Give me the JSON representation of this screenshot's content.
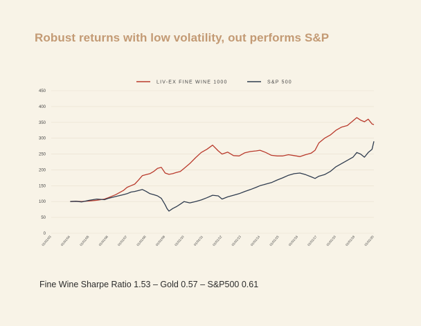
{
  "title": "Robust returns with low volatility, out performs S&P",
  "footer": "Fine Wine Sharpe Ratio 1.53  –  Gold 0.57  –  S&P500 0.61",
  "chart_data": {
    "type": "line",
    "xlabel": "",
    "ylabel": "",
    "ylim": [
      0,
      450
    ],
    "yticks": [
      0,
      50,
      100,
      150,
      200,
      250,
      300,
      350,
      400,
      450
    ],
    "xlim": [
      2003,
      2020
    ],
    "x_tick_labels": [
      "01/01/03",
      "01/01/04",
      "01/01/05",
      "01/01/06",
      "01/01/07",
      "01/01/08",
      "01/01/09",
      "01/01/10",
      "01/01/11",
      "01/01/12",
      "01/01/13",
      "01/01/14",
      "01/01/15",
      "01/01/16",
      "01/01/17",
      "01/01/18",
      "01/01/19",
      "01/01/20"
    ],
    "grid": "horizontal",
    "legend_position": "top-center",
    "series": [
      {
        "name": "LIV-EX FINE WINE 1000",
        "color": "#b93a2c",
        "x": [
          2004.0,
          2004.3,
          2004.6,
          2005.0,
          2005.4,
          2005.8,
          2006.0,
          2006.4,
          2006.8,
          2007.0,
          2007.2,
          2007.4,
          2007.6,
          2007.8,
          2008.0,
          2008.2,
          2008.4,
          2008.6,
          2008.8,
          2009.0,
          2009.2,
          2009.4,
          2009.6,
          2009.8,
          2010.0,
          2010.3,
          2010.6,
          2010.9,
          2011.2,
          2011.5,
          2011.8,
          2012.0,
          2012.3,
          2012.6,
          2012.9,
          2013.2,
          2013.5,
          2013.8,
          2014.0,
          2014.3,
          2014.6,
          2014.9,
          2015.2,
          2015.5,
          2015.8,
          2016.1,
          2016.4,
          2016.7,
          2016.9,
          2017.1,
          2017.4,
          2017.7,
          2018.0,
          2018.3,
          2018.6,
          2018.9,
          2019.1,
          2019.3,
          2019.5,
          2019.7,
          2019.9,
          2020.0
        ],
        "values": [
          100,
          101,
          100,
          102,
          104,
          108,
          112,
          122,
          135,
          145,
          150,
          155,
          168,
          182,
          185,
          188,
          195,
          205,
          208,
          190,
          186,
          188,
          192,
          195,
          205,
          220,
          238,
          255,
          265,
          278,
          260,
          250,
          256,
          245,
          244,
          254,
          258,
          260,
          262,
          255,
          246,
          244,
          244,
          248,
          245,
          242,
          248,
          253,
          262,
          285,
          300,
          310,
          325,
          335,
          340,
          355,
          365,
          357,
          352,
          360,
          345,
          343
        ]
      },
      {
        "name": "S&P 500",
        "color": "#2f3c4f",
        "x": [
          2004.0,
          2004.3,
          2004.6,
          2005.0,
          2005.4,
          2005.8,
          2006.0,
          2006.4,
          2006.8,
          2007.0,
          2007.2,
          2007.4,
          2007.6,
          2007.8,
          2008.0,
          2008.2,
          2008.4,
          2008.6,
          2008.8,
          2009.0,
          2009.1,
          2009.2,
          2009.4,
          2009.6,
          2009.8,
          2010.0,
          2010.3,
          2010.6,
          2010.9,
          2011.2,
          2011.5,
          2011.8,
          2012.0,
          2012.3,
          2012.6,
          2012.9,
          2013.2,
          2013.5,
          2013.8,
          2014.0,
          2014.3,
          2014.6,
          2014.9,
          2015.2,
          2015.5,
          2015.8,
          2016.1,
          2016.4,
          2016.7,
          2016.9,
          2017.1,
          2017.4,
          2017.7,
          2018.0,
          2018.3,
          2018.6,
          2018.9,
          2019.1,
          2019.3,
          2019.5,
          2019.7,
          2019.9,
          2020.0
        ],
        "values": [
          100,
          101,
          99,
          104,
          108,
          106,
          110,
          116,
          122,
          125,
          130,
          132,
          135,
          138,
          132,
          125,
          122,
          118,
          110,
          90,
          78,
          70,
          78,
          84,
          92,
          100,
          96,
          100,
          105,
          112,
          120,
          118,
          108,
          115,
          120,
          125,
          132,
          138,
          145,
          150,
          155,
          160,
          168,
          175,
          183,
          188,
          190,
          185,
          178,
          173,
          180,
          185,
          195,
          210,
          220,
          230,
          240,
          255,
          250,
          240,
          255,
          265,
          290
        ]
      }
    ]
  }
}
